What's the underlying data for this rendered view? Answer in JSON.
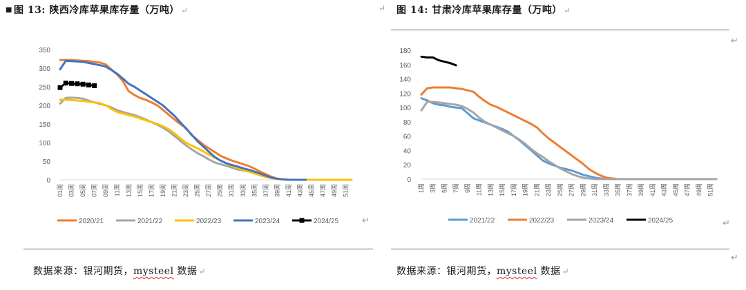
{
  "left": {
    "caption": {
      "bullet": "■",
      "label": "图 13:",
      "title": "陕西冷库苹果库存量（万吨）",
      "mark": "↵"
    },
    "source": {
      "prefix": "数据来源：银河期货，",
      "brand": "mysteel",
      "suffix": " 数据",
      "mark": "↵"
    },
    "chart_data": {
      "type": "line",
      "title": "陕西冷库苹果库存量（万吨）",
      "xlabel": "",
      "ylabel": "万吨",
      "ylim": [
        0,
        350
      ],
      "yticks": [
        0,
        50,
        100,
        150,
        200,
        250,
        300,
        350
      ],
      "week_count": 52,
      "x_tick_labels": [
        "01周",
        "03周",
        "05周",
        "07周",
        "09周",
        "11周",
        "13周",
        "15周",
        "17周",
        "19周",
        "21周",
        "23周",
        "25周",
        "27周",
        "29周",
        "31周",
        "33周",
        "35周",
        "37周",
        "39周",
        "41周",
        "43周",
        "45周",
        "47周",
        "49周",
        "51周"
      ],
      "legend_position": "bottom",
      "series": [
        {
          "name": "2020/21",
          "color": "#ED7D31",
          "marker": false,
          "values": [
            322,
            322,
            322,
            321,
            320,
            319,
            317,
            315,
            310,
            296,
            283,
            265,
            238,
            228,
            220,
            215,
            208,
            200,
            188,
            175,
            162,
            150,
            140,
            120,
            108,
            95,
            85,
            75,
            65,
            58,
            52,
            47,
            42,
            37,
            30,
            22,
            15,
            8,
            3,
            1,
            0,
            0
          ]
        },
        {
          "name": "2021/22",
          "color": "#A5A5A5",
          "marker": false,
          "values": [
            205,
            220,
            221,
            220,
            218,
            213,
            208,
            204,
            200,
            194,
            187,
            182,
            178,
            174,
            168,
            162,
            155,
            148,
            140,
            130,
            118,
            105,
            93,
            82,
            72,
            64,
            55,
            47,
            42,
            38,
            33,
            28,
            25,
            22,
            18,
            14,
            10,
            6,
            3,
            1,
            0,
            0
          ]
        },
        {
          "name": "2022/23",
          "color": "#FFC000",
          "marker": false,
          "values": [
            215,
            215,
            214,
            213,
            212,
            210,
            208,
            206,
            200,
            190,
            182,
            178,
            174,
            170,
            165,
            160,
            155,
            150,
            144,
            136,
            125,
            112,
            100,
            92,
            85,
            77,
            68,
            60,
            52,
            45,
            38,
            32,
            27,
            22,
            17,
            12,
            8,
            4,
            2,
            1,
            0,
            0,
            0,
            0,
            0,
            0,
            0,
            0,
            0,
            0,
            0,
            0
          ]
        },
        {
          "name": "2023/24",
          "color": "#4472C4",
          "marker": false,
          "values": [
            297,
            320,
            319,
            318,
            317,
            314,
            311,
            308,
            304,
            295,
            285,
            272,
            258,
            250,
            240,
            230,
            220,
            210,
            200,
            186,
            172,
            155,
            138,
            122,
            104,
            90,
            76,
            62,
            52,
            45,
            40,
            36,
            31,
            27,
            22,
            17,
            11,
            6,
            3,
            1,
            0,
            0,
            0,
            0
          ]
        },
        {
          "name": "2024/25",
          "color": "#000000",
          "marker": true,
          "values": [
            248,
            260,
            259,
            258,
            257,
            255,
            253
          ]
        }
      ]
    }
  },
  "right": {
    "caption": {
      "lead_mark": "↵",
      "label": "图 14:",
      "title": "甘肃冷库苹果库存量（万吨）",
      "mark": "↵"
    },
    "source": {
      "prefix": "数据来源：银河期货，",
      "brand": "mysteel",
      "suffix": " 数据",
      "mark": "↵"
    },
    "chart_data": {
      "type": "line",
      "title": "甘肃冷库苹果库存量（万吨）",
      "xlabel": "",
      "ylabel": "万吨",
      "ylim": [
        0,
        180
      ],
      "yticks": [
        0,
        20,
        40,
        60,
        80,
        100,
        120,
        140,
        160,
        180
      ],
      "week_count": 52,
      "x_tick_labels": [
        "1周",
        "3周",
        "5周",
        "7周",
        "9周",
        "11周",
        "13周",
        "15周",
        "17周",
        "19周",
        "21周",
        "23周",
        "25周",
        "27周",
        "29周",
        "31周",
        "33周",
        "35周",
        "37周",
        "39周",
        "41周",
        "43周",
        "45周",
        "47周",
        "49周",
        "51周"
      ],
      "legend_position": "bottom",
      "series": [
        {
          "name": "2021/22",
          "color": "#5B9BD5",
          "marker": false,
          "values": [
            113,
            110,
            106,
            104,
            103,
            101,
            100,
            99,
            92,
            85,
            82,
            79,
            76,
            73,
            70,
            66,
            60,
            54,
            47,
            40,
            33,
            26,
            22,
            19,
            16,
            14,
            12,
            9,
            6,
            4,
            2,
            1,
            0,
            0
          ]
        },
        {
          "name": "2022/23",
          "color": "#ED7D31",
          "marker": false,
          "values": [
            118,
            127,
            128,
            128,
            128,
            128,
            127,
            126,
            124,
            122,
            115,
            109,
            104,
            101,
            97,
            93,
            89,
            85,
            81,
            77,
            72,
            64,
            57,
            51,
            45,
            39,
            33,
            27,
            21,
            14,
            9,
            5,
            2,
            1,
            0,
            0
          ]
        },
        {
          "name": "2023/24",
          "color": "#A5A5A5",
          "marker": false,
          "values": [
            96,
            108,
            108,
            107,
            106,
            105,
            104,
            102,
            98,
            93,
            86,
            80,
            76,
            72,
            68,
            64,
            60,
            55,
            49,
            42,
            36,
            31,
            25,
            20,
            15,
            11,
            7,
            4,
            2,
            1,
            0,
            0,
            0,
            0,
            0,
            0,
            0,
            0,
            0,
            0,
            0,
            0,
            0,
            0,
            0,
            0,
            0,
            0,
            0,
            0,
            0,
            0
          ]
        },
        {
          "name": "2024/25",
          "color": "#000000",
          "marker": false,
          "values": [
            171,
            170,
            170,
            166,
            164,
            162,
            159
          ]
        }
      ]
    }
  },
  "page_marks": {
    "arrow": "↵"
  }
}
